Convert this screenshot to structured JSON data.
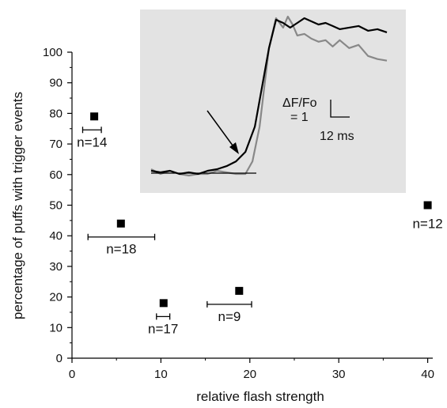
{
  "chart_data": [
    {
      "type": "scatter",
      "title": "",
      "xlabel": "relative flash strength",
      "ylabel": "percentage of puffs with trigger events",
      "xlim": [
        0,
        45
      ],
      "ylim": [
        0,
        105
      ],
      "x_ticks": [
        0,
        10,
        20,
        30,
        40
      ],
      "y_ticks": [
        0,
        10,
        20,
        30,
        40,
        50,
        60,
        70,
        80,
        90,
        100
      ],
      "grid": false,
      "marker": "square",
      "marker_color": "#000000",
      "points": [
        {
          "x": 2.5,
          "y": 79,
          "x_err_low": 1.2,
          "x_err_high": 3.3,
          "n_label": "n=14"
        },
        {
          "x": 5.5,
          "y": 44,
          "x_err_low": 1.8,
          "x_err_high": 9.3,
          "n_label": "n=18"
        },
        {
          "x": 10.3,
          "y": 18,
          "x_err_low": 9.5,
          "x_err_high": 11.0,
          "n_label": "n=17"
        },
        {
          "x": 18.8,
          "y": 22,
          "x_err_low": 15.2,
          "x_err_high": 20.2,
          "n_label": "n=9"
        },
        {
          "x": 40.0,
          "y": 50,
          "x_err_low": null,
          "x_err_high": null,
          "n_label": "n=12"
        }
      ]
    },
    {
      "type": "line",
      "title": "",
      "background": "#e3e3e3",
      "xlim": [
        0,
        100
      ],
      "ylim": [
        0,
        100
      ],
      "series": [
        {
          "color": "#000000",
          "x": [
            0,
            4,
            8,
            12,
            16,
            20,
            24,
            28,
            32,
            36,
            40,
            44,
            47,
            50,
            53,
            56,
            59,
            62,
            65,
            68,
            71,
            74,
            77,
            80,
            84,
            88,
            92,
            96,
            100
          ],
          "y": [
            2,
            1,
            2,
            0,
            1,
            0,
            2,
            3,
            5,
            8,
            14,
            30,
            55,
            80,
            98,
            96,
            93,
            96,
            99,
            97,
            95,
            96,
            94,
            92,
            93,
            94,
            91,
            92,
            90
          ]
        },
        {
          "color": "#888888",
          "x": [
            0,
            4,
            8,
            12,
            16,
            20,
            24,
            28,
            32,
            36,
            40,
            43,
            46,
            48,
            50,
            53,
            56,
            58,
            60,
            62,
            65,
            68,
            71,
            74,
            77,
            80,
            84,
            88,
            92,
            96,
            100
          ],
          "y": [
            3,
            0,
            2,
            0,
            -1,
            0,
            0,
            2,
            1,
            0,
            0,
            8,
            30,
            55,
            80,
            99,
            93,
            100,
            95,
            88,
            89,
            86,
            84,
            85,
            81,
            85,
            80,
            82,
            75,
            73,
            72
          ]
        }
      ],
      "baseline_y": 0,
      "annotation_arrow": true,
      "scale_bar": {
        "y_label_line1": "ΔF/Fo",
        "y_label_line2": "= 1",
        "x_label": "12 ms"
      }
    }
  ]
}
